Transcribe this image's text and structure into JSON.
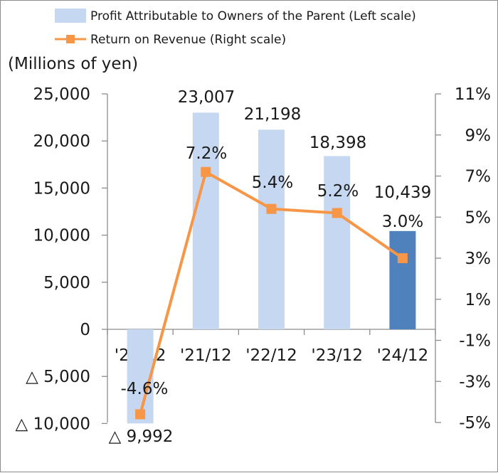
{
  "chart_data": {
    "type": "bar",
    "categories": [
      "'20/12",
      "'21/12",
      "'22/12",
      "'23/12",
      "'24/12"
    ],
    "series": [
      {
        "name": "Profit Attributable to Owners of the Parent  (Left scale)",
        "kind": "bar",
        "axis": "left",
        "values": [
          -9992,
          23007,
          21198,
          18398,
          10439
        ],
        "value_labels": [
          "△ 9,992",
          "23,007",
          "21,198",
          "18,398",
          "10,439"
        ],
        "colors": [
          "#c5d7f1",
          "#c5d7f1",
          "#c5d7f1",
          "#c5d7f1",
          "#4f81bd"
        ]
      },
      {
        "name": "Return on Revenue (Right scale)",
        "kind": "line",
        "axis": "right",
        "values": [
          -4.6,
          7.2,
          5.4,
          5.2,
          3.0
        ],
        "value_labels": [
          "-4.6%",
          "7.2%",
          "5.4%",
          "5.2%",
          "3.0%"
        ],
        "color": "#f79646"
      }
    ],
    "y_left": {
      "label": "(Millions of yen)",
      "range": [
        -10000,
        25000
      ],
      "ticks": [
        25000,
        20000,
        15000,
        10000,
        5000,
        0,
        -5000,
        -10000
      ],
      "tick_labels": [
        "25,000",
        "20,000",
        "15,000",
        "10,000",
        "5,000",
        "0",
        "△ 5,000",
        "△ 10,000"
      ]
    },
    "y_right": {
      "range": [
        -5,
        11
      ],
      "ticks": [
        11,
        9,
        7,
        5,
        3,
        1,
        -1,
        -3,
        -5
      ],
      "tick_labels": [
        "11%",
        "9%",
        "7%",
        "5%",
        "3%",
        "1%",
        "-1%",
        "-3%",
        "-5%"
      ]
    },
    "legend_position": "top",
    "grid": false
  }
}
